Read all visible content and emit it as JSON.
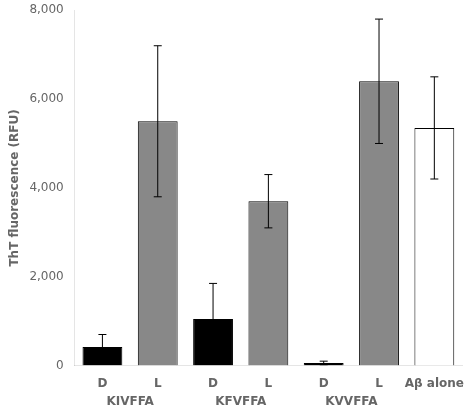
{
  "chart_data": {
    "type": "bar",
    "ylabel": "ThT fluorescence (RFU)",
    "categories": [
      "D",
      "L",
      "D",
      "L",
      "D",
      "L",
      "Aβ alone"
    ],
    "groups": [
      "KIVFFA",
      "KIVFFA",
      "KFVFFA",
      "KFVFFA",
      "KVVFFA",
      "KVVFFA",
      null
    ],
    "values": [
      420,
      5500,
      1050,
      3700,
      60,
      6400,
      5350
    ],
    "errors": [
      280,
      1700,
      800,
      600,
      40,
      1400,
      1150
    ],
    "colors": [
      "#000000",
      "#888888",
      "#000000",
      "#888888",
      "#000000",
      "#888888",
      "#ffffff"
    ],
    "ylim": [
      0,
      8000
    ],
    "yticks": [
      0,
      2000,
      4000,
      6000,
      8000
    ],
    "grid": false
  }
}
